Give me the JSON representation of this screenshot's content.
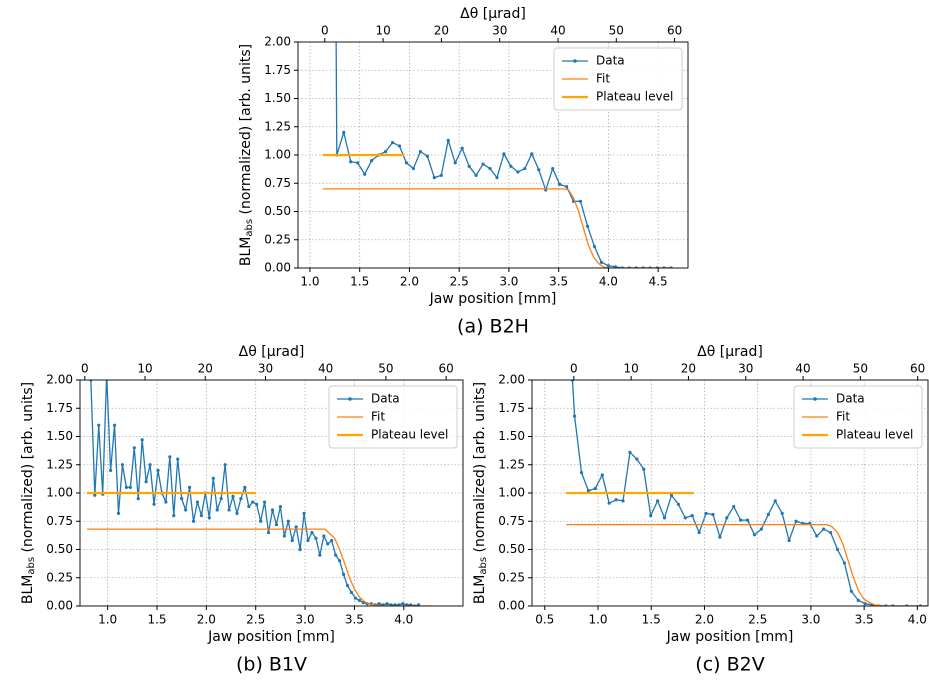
{
  "chart_data": [
    {
      "type": "line",
      "caption": "(a) B2H",
      "xlabel": "Jaw position [mm]",
      "x2label": "Δθ [μrad]",
      "ylabel": {
        "main": "BLM",
        "sub": "abs",
        "rest": " (normalized) [arb. units]"
      },
      "xlim": [
        0.88,
        4.8
      ],
      "x2lim": [
        -4.6,
        62.3
      ],
      "ylim": [
        0,
        2
      ],
      "xticks": [
        {
          "value": 1,
          "label": "1.0"
        },
        1.5,
        {
          "value": 2,
          "label": "2.0"
        },
        2.5,
        {
          "value": 3,
          "label": "3.0"
        },
        3.5,
        {
          "value": 4,
          "label": "4.0"
        },
        4.5
      ],
      "x2ticks": [
        0,
        10,
        20,
        30,
        40,
        50,
        60
      ],
      "yticks": [
        {
          "value": 0,
          "label": "0.00"
        },
        0.25,
        {
          "value": 0.5,
          "label": "0.50"
        },
        0.75,
        {
          "value": 1,
          "label": "1.00"
        },
        1.25,
        {
          "value": 1.5,
          "label": "1.50"
        },
        1.75,
        {
          "value": 2,
          "label": "2.00"
        }
      ],
      "grid": true,
      "legend": "upper right",
      "series": [
        {
          "name": "Data",
          "color": "#1f77b4",
          "markers": true,
          "x": [
            1.26,
            1.27,
            1.34,
            1.41,
            1.48,
            1.55,
            1.62,
            1.69,
            1.76,
            1.83,
            1.9,
            1.97,
            2.04,
            2.11,
            2.18,
            2.25,
            2.32,
            2.39,
            2.46,
            2.53,
            2.6,
            2.67,
            2.74,
            2.81,
            2.88,
            2.95,
            3.02,
            3.09,
            3.16,
            3.23,
            3.3,
            3.37,
            3.44,
            3.51,
            3.58,
            3.65,
            3.72,
            3.79,
            3.86,
            3.93,
            4.0,
            4.07,
            4.14,
            4.21,
            4.28,
            4.35,
            4.42,
            4.49,
            4.56,
            4.63
          ],
          "values": [
            2.5,
            1.0,
            1.2,
            0.94,
            0.93,
            0.83,
            0.95,
            1.0,
            1.03,
            1.11,
            1.08,
            0.93,
            0.88,
            1.03,
            0.99,
            0.8,
            0.82,
            1.13,
            0.93,
            1.06,
            0.9,
            0.82,
            0.92,
            0.88,
            0.8,
            1.01,
            0.9,
            0.85,
            0.88,
            1.01,
            0.87,
            0.69,
            0.88,
            0.74,
            0.72,
            0.59,
            0.59,
            0.37,
            0.19,
            0.05,
            0.02,
            0.01,
            0,
            0,
            0,
            0,
            0,
            0,
            0,
            0
          ]
        },
        {
          "name": "Fit",
          "color": "#ff7f0e",
          "width": 1.3,
          "x": [
            1.13,
            3.55,
            3.6,
            3.65,
            3.7,
            3.75,
            3.8,
            3.85,
            3.9,
            3.95,
            4.0,
            4.65
          ],
          "values": [
            0.7,
            0.7,
            0.69,
            0.62,
            0.5,
            0.35,
            0.2,
            0.1,
            0.04,
            0.01,
            0,
            0
          ]
        },
        {
          "name": "Plateau level",
          "color": "#ffa500",
          "width": 2.2,
          "x": [
            1.13,
            1.95
          ],
          "values": [
            1.0,
            1.0
          ]
        }
      ]
    },
    {
      "type": "line",
      "caption": "(b) B1V",
      "xlabel": "Jaw position [mm]",
      "x2label": "Δθ [μrad]",
      "ylabel": {
        "main": "BLM",
        "sub": "abs",
        "rest": " (normalized) [arb. units]"
      },
      "xlim": [
        0.72,
        4.6
      ],
      "x2lim": [
        -0.8,
        62.8
      ],
      "ylim": [
        0,
        2
      ],
      "xticks": [
        {
          "value": 1,
          "label": "1.0"
        },
        1.5,
        {
          "value": 2,
          "label": "2.0"
        },
        2.5,
        {
          "value": 3,
          "label": "3.0"
        },
        3.5,
        {
          "value": 4,
          "label": "4.0"
        }
      ],
      "x2ticks": [
        0,
        10,
        20,
        30,
        40,
        50,
        60
      ],
      "yticks": [
        {
          "value": 0,
          "label": "0.00"
        },
        0.25,
        {
          "value": 0.5,
          "label": "0.50"
        },
        0.75,
        {
          "value": 1,
          "label": "1.00"
        },
        1.25,
        {
          "value": 1.5,
          "label": "1.50"
        },
        1.75,
        {
          "value": 2,
          "label": "2.00"
        }
      ],
      "grid": true,
      "legend": "upper right",
      "series": [
        {
          "name": "Data",
          "color": "#1f77b4",
          "markers": true,
          "x": [
            0.83,
            0.87,
            0.91,
            0.95,
            0.99,
            1.03,
            1.07,
            1.11,
            1.15,
            1.19,
            1.23,
            1.27,
            1.31,
            1.35,
            1.39,
            1.43,
            1.47,
            1.51,
            1.55,
            1.59,
            1.63,
            1.67,
            1.71,
            1.75,
            1.79,
            1.83,
            1.87,
            1.91,
            1.95,
            1.99,
            2.03,
            2.07,
            2.11,
            2.15,
            2.19,
            2.23,
            2.27,
            2.31,
            2.35,
            2.39,
            2.43,
            2.47,
            2.51,
            2.55,
            2.59,
            2.63,
            2.67,
            2.71,
            2.75,
            2.79,
            2.83,
            2.87,
            2.91,
            2.95,
            2.99,
            3.03,
            3.07,
            3.11,
            3.15,
            3.19,
            3.23,
            3.27,
            3.31,
            3.35,
            3.39,
            3.43,
            3.47,
            3.51,
            3.55,
            3.59,
            3.63,
            3.67,
            3.71,
            3.75,
            3.79,
            3.83,
            3.87,
            3.91,
            3.95,
            3.99,
            4.03,
            4.07,
            4.11,
            4.15
          ],
          "values": [
            2.0,
            0.98,
            1.6,
            0.99,
            2.05,
            1.2,
            1.6,
            0.82,
            1.25,
            1.05,
            1.05,
            1.4,
            0.95,
            1.47,
            1.1,
            1.25,
            0.9,
            1.2,
            1.0,
            0.92,
            1.32,
            0.8,
            1.3,
            0.95,
            0.85,
            1.05,
            0.75,
            0.92,
            0.8,
            1.0,
            0.78,
            1.13,
            0.85,
            0.95,
            1.25,
            0.85,
            0.97,
            0.82,
            0.95,
            1.05,
            0.88,
            0.92,
            0.9,
            0.75,
            0.92,
            0.65,
            0.85,
            0.72,
            0.88,
            0.62,
            0.75,
            0.58,
            0.7,
            0.5,
            0.82,
            0.58,
            0.65,
            0.6,
            0.45,
            0.62,
            0.55,
            0.58,
            0.45,
            0.4,
            0.28,
            0.18,
            0.12,
            0.07,
            0.05,
            0.03,
            0.02,
            0.02,
            0.01,
            0.02,
            0.01,
            0.02,
            0.01,
            0.01,
            0.01,
            0.02,
            0.01,
            0.01,
            0,
            0.01
          ]
        },
        {
          "name": "Fit",
          "color": "#ff7f0e",
          "width": 1.3,
          "x": [
            0.79,
            3.2,
            3.3,
            3.35,
            3.4,
            3.45,
            3.5,
            3.55,
            3.6,
            3.65,
            3.7,
            3.8,
            4.3
          ],
          "values": [
            0.68,
            0.68,
            0.6,
            0.5,
            0.38,
            0.25,
            0.15,
            0.08,
            0.04,
            0.02,
            0.01,
            0,
            0
          ]
        },
        {
          "name": "Plateau level",
          "color": "#ffa500",
          "width": 2.2,
          "x": [
            0.79,
            2.5
          ],
          "values": [
            1.0,
            1.0
          ]
        }
      ]
    },
    {
      "type": "line",
      "caption": "(c) B2V",
      "xlabel": "Jaw position [mm]",
      "x2label": "Δθ [μrad]",
      "ylabel": {
        "main": "BLM",
        "sub": "abs",
        "rest": " (normalized) [arb. units]"
      },
      "xlim": [
        0.38,
        4.1
      ],
      "x2lim": [
        -7.3,
        61.8
      ],
      "ylim": [
        0,
        2
      ],
      "xticks": [
        0.5,
        {
          "value": 1,
          "label": "1.0"
        },
        1.5,
        {
          "value": 2,
          "label": "2.0"
        },
        2.5,
        {
          "value": 3,
          "label": "3.0"
        },
        3.5,
        {
          "value": 4,
          "label": "4.0"
        }
      ],
      "x2ticks": [
        0,
        10,
        20,
        30,
        40,
        50,
        60
      ],
      "yticks": [
        {
          "value": 0,
          "label": "0.00"
        },
        0.25,
        {
          "value": 0.5,
          "label": "0.50"
        },
        0.75,
        {
          "value": 1,
          "label": "1.00"
        },
        1.25,
        {
          "value": 1.5,
          "label": "1.50"
        },
        1.75,
        {
          "value": 2,
          "label": "2.00"
        }
      ],
      "grid": true,
      "legend": "upper right",
      "series": [
        {
          "name": "Data",
          "color": "#1f77b4",
          "markers": true,
          "x": [
            0.76,
            0.78,
            0.845,
            0.91,
            0.975,
            1.04,
            1.105,
            1.17,
            1.235,
            1.3,
            1.365,
            1.43,
            1.495,
            1.56,
            1.625,
            1.69,
            1.755,
            1.82,
            1.885,
            1.95,
            2.015,
            2.08,
            2.145,
            2.21,
            2.275,
            2.34,
            2.405,
            2.47,
            2.535,
            2.6,
            2.665,
            2.73,
            2.795,
            2.86,
            2.925,
            2.99,
            3.055,
            3.12,
            3.185,
            3.25,
            3.315,
            3.38,
            3.445,
            3.51,
            3.575,
            3.64,
            3.705,
            3.77,
            3.9,
            4.03,
            4.16,
            4.25
          ],
          "values": [
            2.0,
            1.68,
            1.18,
            1.02,
            1.04,
            1.16,
            0.91,
            0.94,
            0.93,
            1.36,
            1.3,
            1.21,
            0.8,
            0.93,
            0.78,
            0.98,
            0.9,
            0.78,
            0.8,
            0.65,
            0.82,
            0.81,
            0.61,
            0.78,
            0.88,
            0.76,
            0.76,
            0.63,
            0.68,
            0.81,
            0.93,
            0.82,
            0.58,
            0.75,
            0.73,
            0.73,
            0.62,
            0.68,
            0.65,
            0.5,
            0.38,
            0.13,
            0.05,
            0.02,
            0.01,
            0,
            0,
            0,
            0,
            0,
            0,
            0
          ]
        },
        {
          "name": "Fit",
          "color": "#ff7f0e",
          "width": 1.3,
          "x": [
            0.7,
            3.15,
            3.2,
            3.25,
            3.3,
            3.35,
            3.4,
            3.45,
            3.5,
            3.55,
            3.6,
            3.7,
            4.3
          ],
          "values": [
            0.72,
            0.72,
            0.7,
            0.65,
            0.55,
            0.4,
            0.25,
            0.13,
            0.06,
            0.03,
            0.01,
            0,
            0
          ]
        },
        {
          "name": "Plateau level",
          "color": "#ffa500",
          "width": 2.2,
          "x": [
            0.7,
            1.9
          ],
          "values": [
            1.0,
            1.0
          ]
        }
      ]
    }
  ]
}
